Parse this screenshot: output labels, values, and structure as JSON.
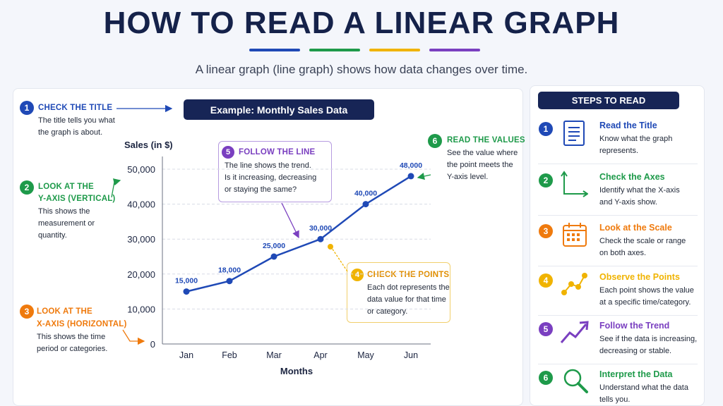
{
  "header": {
    "title": "HOW TO READ A LINEAR GRAPH",
    "subtitle": "A linear graph (line graph) shows how data changes over time.",
    "underline_colors": [
      "#1f49b6",
      "#1e9a4a",
      "#f0b300",
      "#7a3fc0"
    ]
  },
  "callouts": {
    "c1": {
      "num": "1",
      "title": "CHECK THE TITLE",
      "lines": [
        "The title tells you what",
        "the graph is about."
      ],
      "color": "#1f49b6"
    },
    "c2": {
      "num": "2",
      "title_lines": [
        "LOOK AT THE",
        "Y-AXIS (VERTICAL)"
      ],
      "lines": [
        "This shows the",
        "measurement or",
        "quantity."
      ],
      "color": "#1e9a4a"
    },
    "c3": {
      "num": "3",
      "title_lines": [
        "LOOK AT THE",
        "X-AXIS (HORIZONTAL)"
      ],
      "lines": [
        "This shows the time",
        "period or categories."
      ],
      "color": "#ef7a0d"
    },
    "c4": {
      "num": "4",
      "title": "CHECK THE POINTS",
      "lines": [
        "Each dot represents the",
        "data value for that time",
        "or category."
      ],
      "color": "#f0b300"
    },
    "c5": {
      "num": "5",
      "title": "FOLLOW THE LINE",
      "lines": [
        "The line shows the trend.",
        "Is it increasing, decreasing",
        "or staying the same?"
      ],
      "color": "#7a3fc0"
    },
    "c6": {
      "num": "6",
      "title": "READ THE VALUES",
      "lines": [
        "See the value where",
        "the point meets the",
        "Y-axis level."
      ],
      "color": "#1e9a4a"
    }
  },
  "chart_data": {
    "type": "line",
    "title": "Example: Monthly Sales Data",
    "xlabel": "Months",
    "ylabel": "Sales (in $)",
    "categories": [
      "Jan",
      "Feb",
      "Mar",
      "Apr",
      "May",
      "Jun"
    ],
    "values": [
      15000,
      18000,
      25000,
      30000,
      40000,
      48000
    ],
    "data_labels": [
      "15,000",
      "18,000",
      "25,000",
      "30,000",
      "40,000",
      "48,000"
    ],
    "yticks": [
      0,
      10000,
      20000,
      30000,
      40000,
      50000
    ],
    "ytick_labels": [
      "0",
      "10,000",
      "20,000",
      "30,000",
      "40,000",
      "50,000"
    ],
    "ylim": [
      0,
      50000
    ],
    "grid": true,
    "line_color": "#1f49b6"
  },
  "steps_panel": {
    "title": "STEPS TO READ",
    "steps": [
      {
        "num": "1",
        "title": "Read the Title",
        "lines": [
          "Know what the graph",
          "represents."
        ],
        "color": "#1f49b6",
        "icon": "document-icon"
      },
      {
        "num": "2",
        "title": "Check the Axes",
        "lines": [
          "Identify what the X-axis",
          "and Y-axis show."
        ],
        "color": "#1e9a4a",
        "icon": "axes-icon"
      },
      {
        "num": "3",
        "title": "Look at the Scale",
        "lines": [
          "Check the scale or range",
          "on both axes."
        ],
        "color": "#ef7a0d",
        "icon": "calendar-icon"
      },
      {
        "num": "4",
        "title": "Observe the Points",
        "lines": [
          "Each point shows the value",
          "at a specific time/category."
        ],
        "color": "#f0b300",
        "icon": "points-icon"
      },
      {
        "num": "5",
        "title": "Follow the Trend",
        "lines": [
          "See if the data is increasing,",
          "decreasing or stable."
        ],
        "color": "#7a3fc0",
        "icon": "trend-arrow-icon"
      },
      {
        "num": "6",
        "title": "Interpret the Data",
        "lines": [
          "Understand what the data",
          "tells you."
        ],
        "color": "#1e9a4a",
        "icon": "magnifier-icon"
      }
    ]
  }
}
